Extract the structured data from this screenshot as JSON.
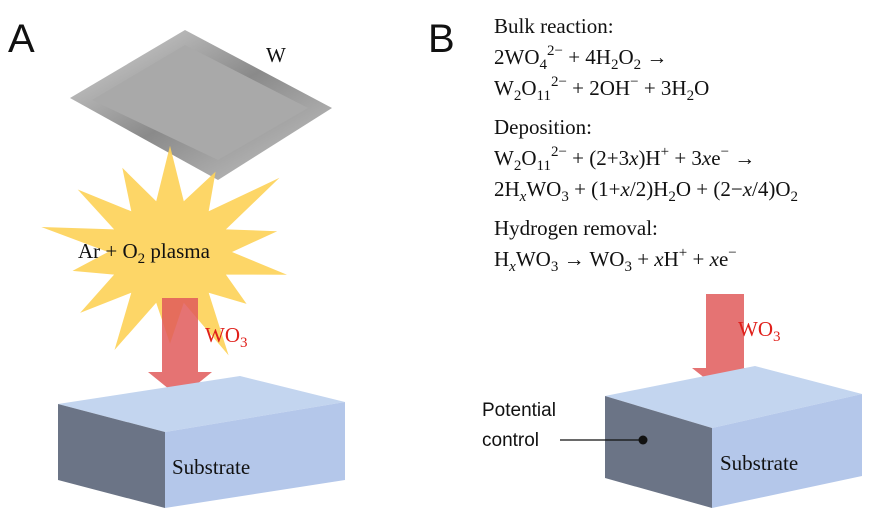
{
  "panel_a": {
    "label": "A",
    "target": "W",
    "plasma": [
      {
        "text": "Ar + O"
      },
      {
        "text": "2",
        "style": "sub"
      },
      {
        "text": " plasma"
      }
    ],
    "product": [
      {
        "text": "WO"
      },
      {
        "text": "3",
        "style": "sub"
      }
    ],
    "substrate": "Substrate"
  },
  "panel_b": {
    "label": "B",
    "sections": [
      {
        "heading": "Bulk reaction:",
        "lines": [
          [
            {
              "text": "2WO"
            },
            {
              "text": "4",
              "style": "sub"
            },
            {
              "text": "2−",
              "style": "sup"
            },
            {
              "text": " + 4H"
            },
            {
              "text": "2",
              "style": "sub"
            },
            {
              "text": "O"
            },
            {
              "text": "2",
              "style": "sub"
            },
            {
              "text": " →"
            }
          ],
          [
            {
              "text": "W"
            },
            {
              "text": "2",
              "style": "sub"
            },
            {
              "text": "O"
            },
            {
              "text": "11",
              "style": "sub"
            },
            {
              "text": "2−",
              "style": "sup"
            },
            {
              "text": " + 2OH"
            },
            {
              "text": "−",
              "style": "sup"
            },
            {
              "text": " + 3H"
            },
            {
              "text": "2",
              "style": "sub"
            },
            {
              "text": "O"
            }
          ]
        ]
      },
      {
        "heading": "Deposition:",
        "lines": [
          [
            {
              "text": "W"
            },
            {
              "text": "2",
              "style": "sub"
            },
            {
              "text": "O"
            },
            {
              "text": "11",
              "style": "sub"
            },
            {
              "text": "2−",
              "style": "sup"
            },
            {
              "text": " + (2+3"
            },
            {
              "text": "x",
              "style": "italic"
            },
            {
              "text": ")H"
            },
            {
              "text": "+",
              "style": "sup"
            },
            {
              "text": " + 3"
            },
            {
              "text": "x",
              "style": "italic"
            },
            {
              "text": "e"
            },
            {
              "text": "−",
              "style": "sup"
            },
            {
              "text": " →"
            }
          ],
          [
            {
              "text": "2H"
            },
            {
              "text": "x",
              "style": "sub-italic"
            },
            {
              "text": "WO"
            },
            {
              "text": "3",
              "style": "sub"
            },
            {
              "text": " + (1+"
            },
            {
              "text": "x",
              "style": "italic"
            },
            {
              "text": "/2)H"
            },
            {
              "text": "2",
              "style": "sub"
            },
            {
              "text": "O + (2−"
            },
            {
              "text": "x",
              "style": "italic"
            },
            {
              "text": "/4)O"
            },
            {
              "text": "2",
              "style": "sub"
            }
          ]
        ]
      },
      {
        "heading": "Hydrogen removal:",
        "lines": [
          [
            {
              "text": "H"
            },
            {
              "text": "x",
              "style": "sub-italic"
            },
            {
              "text": "WO"
            },
            {
              "text": "3",
              "style": "sub"
            },
            {
              "text": " → WO"
            },
            {
              "text": "3",
              "style": "sub"
            },
            {
              "text": " + "
            },
            {
              "text": "x",
              "style": "italic"
            },
            {
              "text": "H"
            },
            {
              "text": "+",
              "style": "sup"
            },
            {
              "text": " + "
            },
            {
              "text": "x",
              "style": "italic"
            },
            {
              "text": "e"
            },
            {
              "text": "−",
              "style": "sup"
            }
          ]
        ]
      }
    ],
    "product": [
      {
        "text": "WO"
      },
      {
        "text": "3",
        "style": "sub"
      }
    ],
    "substrate": "Substrate",
    "control": [
      "Potential",
      "control"
    ]
  }
}
